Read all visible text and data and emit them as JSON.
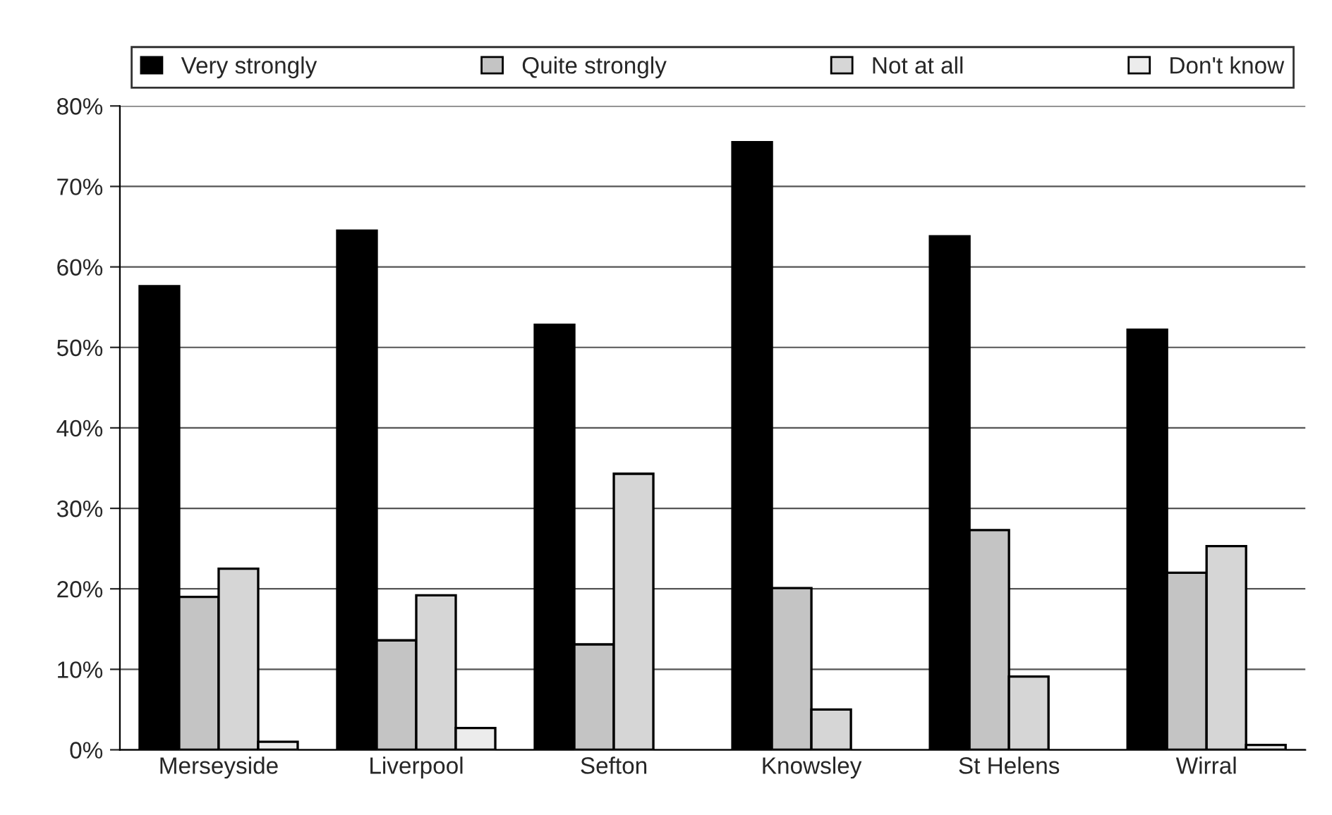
{
  "chart_data": {
    "type": "bar",
    "categories": [
      "Merseyside",
      "Liverpool",
      "Sefton",
      "Knowsley",
      "St Helens",
      "Wirral"
    ],
    "series": [
      {
        "name": "Very strongly",
        "color": "#000000",
        "values": [
          57.6,
          64.5,
          52.8,
          75.5,
          63.8,
          52.2
        ]
      },
      {
        "name": "Quite strongly",
        "color": "#c4c4c4",
        "values": [
          19,
          13.6,
          13.1,
          20.1,
          27.3,
          22
        ]
      },
      {
        "name": "Not at all",
        "color": "#d6d6d6",
        "values": [
          22.5,
          19.2,
          34.3,
          5,
          9.1,
          25.3
        ]
      },
      {
        "name": "Don't know",
        "color": "#ececec",
        "values": [
          1,
          2.7,
          0,
          0,
          0,
          0.6
        ]
      }
    ],
    "ylim": [
      0,
      80
    ],
    "yticks": [
      {
        "value": 0,
        "label": "0%"
      },
      {
        "value": 10,
        "label": "10%"
      },
      {
        "value": 20,
        "label": "20%"
      },
      {
        "value": 30,
        "label": "30%"
      },
      {
        "value": 40,
        "label": "40%"
      },
      {
        "value": 50,
        "label": "50%"
      },
      {
        "value": 60,
        "label": "60%"
      },
      {
        "value": 70,
        "label": "70%"
      },
      {
        "value": 80,
        "label": "80%"
      }
    ],
    "grid": "y",
    "legend": "top"
  }
}
